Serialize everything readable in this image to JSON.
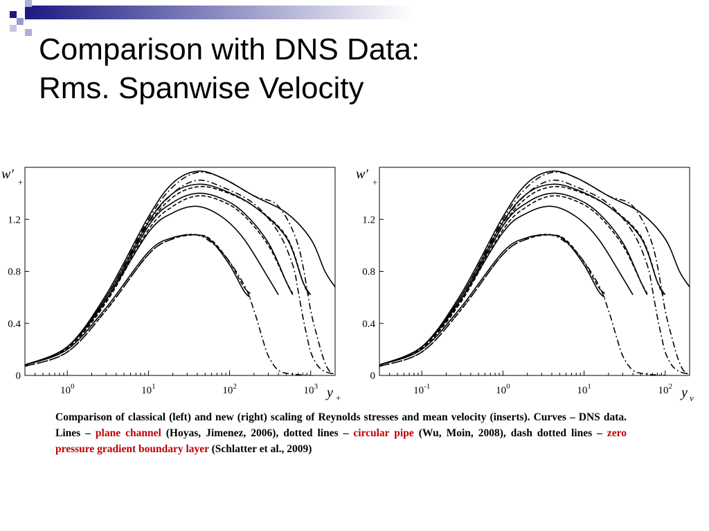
{
  "title": {
    "line1": "Comparison with DNS Data:",
    "line2": "Rms. Spanwise Velocity"
  },
  "decoration": {
    "accent_dark": "#1a1a80",
    "accent_light": "#9999cc"
  },
  "caption": {
    "part1": "Comparison of classical (left) and new (right) scaling of Reynolds stresses and mean velocity (inserts). Curves – DNS data. Lines – ",
    "channel": "plane channel",
    "part2": " (Hoyas, Jimenez, 2006), dotted lines – ",
    "pipe": "circular pipe",
    "part3": " (Wu, Moin, 2008), dash dotted lines – ",
    "bl": "zero pressure gradient boundary layer",
    "part4": " (Schlatter et al., 2009)",
    "highlight_color": "#c00000"
  },
  "chart_data": [
    {
      "type": "line",
      "xscale": "log",
      "ylim": [
        0,
        1.6
      ],
      "xlim": [
        0.3,
        2000
      ],
      "ylabel": "w′",
      "ylabel_sub": "+",
      "xlabel": "y",
      "xlabel_sub": "+",
      "yticks": [
        {
          "value": 0,
          "label": "0"
        },
        {
          "value": 0.4,
          "label": "0.4"
        },
        {
          "value": 0.8,
          "label": "0.8"
        },
        {
          "value": 1.2,
          "label": "1.2"
        }
      ],
      "xticks": [
        {
          "value": 1,
          "base": "10",
          "exp": "0"
        },
        {
          "value": 10,
          "base": "10",
          "exp": "1"
        },
        {
          "value": 100,
          "base": "10",
          "exp": "2"
        },
        {
          "value": 1000,
          "base": "10",
          "exp": "3"
        }
      ],
      "series": [
        {
          "style": "solid",
          "x": [
            0.3,
            1,
            3,
            10,
            20,
            40,
            60,
            100,
            150,
            180
          ],
          "y": [
            0.08,
            0.2,
            0.52,
            0.95,
            1.06,
            1.08,
            1.03,
            0.85,
            0.65,
            0.6
          ]
        },
        {
          "style": "dashed",
          "x": [
            0.3,
            1,
            3,
            10,
            20,
            40,
            60,
            100,
            150,
            180
          ],
          "y": [
            0.07,
            0.18,
            0.5,
            0.93,
            1.05,
            1.08,
            1.04,
            0.87,
            0.68,
            0.63
          ]
        },
        {
          "style": "dashdot",
          "x": [
            0.3,
            1,
            3,
            10,
            20,
            40,
            80,
            150,
            200,
            250,
            300,
            400,
            600,
            1000
          ],
          "y": [
            0.07,
            0.18,
            0.5,
            0.93,
            1.05,
            1.08,
            0.95,
            0.7,
            0.5,
            0.3,
            0.15,
            0.04,
            0.01,
            0.0
          ]
        },
        {
          "style": "solid",
          "x": [
            0.3,
            1,
            3,
            10,
            20,
            40,
            80,
            150,
            300,
            400
          ],
          "y": [
            0.08,
            0.22,
            0.58,
            1.1,
            1.25,
            1.3,
            1.22,
            1.05,
            0.75,
            0.62
          ]
        },
        {
          "style": "dashed",
          "x": [
            0.3,
            1,
            3,
            10,
            20,
            40,
            80,
            150,
            300,
            500,
            600
          ],
          "y": [
            0.08,
            0.21,
            0.56,
            1.12,
            1.3,
            1.38,
            1.34,
            1.23,
            1.0,
            0.72,
            0.63
          ]
        },
        {
          "style": "solid",
          "x": [
            0.3,
            1,
            3,
            10,
            20,
            40,
            80,
            150,
            300,
            500,
            600
          ],
          "y": [
            0.08,
            0.22,
            0.58,
            1.15,
            1.33,
            1.4,
            1.36,
            1.25,
            1.02,
            0.72,
            0.62
          ]
        },
        {
          "style": "dashed",
          "x": [
            0.3,
            1,
            3,
            10,
            20,
            40,
            80,
            200,
            500,
            800,
            950
          ],
          "y": [
            0.08,
            0.21,
            0.57,
            1.15,
            1.37,
            1.45,
            1.42,
            1.3,
            1.07,
            0.72,
            0.62
          ]
        },
        {
          "style": "solid",
          "x": [
            0.3,
            1,
            3,
            10,
            20,
            40,
            80,
            200,
            500,
            800,
            1000
          ],
          "y": [
            0.08,
            0.22,
            0.6,
            1.18,
            1.4,
            1.47,
            1.43,
            1.3,
            1.06,
            0.72,
            0.62
          ]
        },
        {
          "style": "dashdot",
          "x": [
            0.3,
            1,
            3,
            10,
            20,
            40,
            80,
            200,
            400,
            600,
            700,
            800,
            900,
            1000,
            1200,
            1500,
            2000
          ],
          "y": [
            0.08,
            0.22,
            0.6,
            1.17,
            1.4,
            1.5,
            1.45,
            1.32,
            1.1,
            0.85,
            0.65,
            0.45,
            0.3,
            0.18,
            0.08,
            0.03,
            0.01
          ]
        },
        {
          "style": "dashdot",
          "x": [
            0.3,
            1,
            3,
            10,
            20,
            40,
            80,
            200,
            400,
            700,
            1000,
            1200,
            1400,
            1600,
            1800,
            2000
          ],
          "y": [
            0.08,
            0.22,
            0.6,
            1.2,
            1.45,
            1.56,
            1.52,
            1.38,
            1.3,
            1.0,
            0.5,
            0.3,
            0.15,
            0.06,
            0.02,
            0.01
          ]
        },
        {
          "style": "solid",
          "x": [
            0.3,
            1,
            3,
            10,
            20,
            40,
            80,
            200,
            500,
            1000,
            1500,
            2000
          ],
          "y": [
            0.08,
            0.22,
            0.62,
            1.22,
            1.48,
            1.57,
            1.52,
            1.38,
            1.25,
            1.05,
            0.8,
            0.68
          ]
        }
      ]
    },
    {
      "type": "line",
      "xscale": "log",
      "ylim": [
        0,
        1.6
      ],
      "xlim": [
        0.03,
        200
      ],
      "ylabel": "w′",
      "ylabel_sub": "+",
      "xlabel": "y",
      "xlabel_sub": "ν",
      "yticks": [
        {
          "value": 0,
          "label": "0"
        },
        {
          "value": 0.4,
          "label": "0.4"
        },
        {
          "value": 0.8,
          "label": "0.8"
        },
        {
          "value": 1.2,
          "label": "1.2"
        }
      ],
      "xticks": [
        {
          "value": 0.1,
          "base": "10",
          "exp": "-1"
        },
        {
          "value": 1,
          "base": "10",
          "exp": "0"
        },
        {
          "value": 10,
          "base": "10",
          "exp": "1"
        },
        {
          "value": 100,
          "base": "10",
          "exp": "2"
        }
      ],
      "series": [
        {
          "style": "solid",
          "x": [
            0.03,
            0.1,
            0.3,
            1,
            2,
            4,
            6,
            10,
            15,
            18
          ],
          "y": [
            0.08,
            0.2,
            0.52,
            0.95,
            1.06,
            1.08,
            1.03,
            0.85,
            0.65,
            0.6
          ]
        },
        {
          "style": "dashed",
          "x": [
            0.03,
            0.1,
            0.3,
            1,
            2,
            4,
            6,
            10,
            15,
            18
          ],
          "y": [
            0.07,
            0.18,
            0.5,
            0.93,
            1.05,
            1.08,
            1.04,
            0.87,
            0.68,
            0.63
          ]
        },
        {
          "style": "dashdot",
          "x": [
            0.03,
            0.1,
            0.3,
            1,
            2,
            4,
            8,
            15,
            20,
            25,
            30,
            40,
            60,
            100
          ],
          "y": [
            0.07,
            0.18,
            0.5,
            0.93,
            1.05,
            1.08,
            0.95,
            0.7,
            0.5,
            0.3,
            0.15,
            0.04,
            0.01,
            0.0
          ]
        },
        {
          "style": "solid",
          "x": [
            0.03,
            0.1,
            0.3,
            1,
            2,
            4,
            8,
            15,
            30,
            40
          ],
          "y": [
            0.08,
            0.22,
            0.58,
            1.1,
            1.25,
            1.3,
            1.22,
            1.05,
            0.75,
            0.62
          ]
        },
        {
          "style": "dashed",
          "x": [
            0.03,
            0.1,
            0.3,
            1,
            2,
            4,
            8,
            15,
            30,
            50,
            60
          ],
          "y": [
            0.08,
            0.21,
            0.56,
            1.12,
            1.3,
            1.38,
            1.34,
            1.23,
            1.0,
            0.72,
            0.63
          ]
        },
        {
          "style": "solid",
          "x": [
            0.03,
            0.1,
            0.3,
            1,
            2,
            4,
            8,
            15,
            30,
            50,
            60
          ],
          "y": [
            0.08,
            0.22,
            0.58,
            1.15,
            1.33,
            1.4,
            1.36,
            1.25,
            1.02,
            0.72,
            0.62
          ]
        },
        {
          "style": "dashed",
          "x": [
            0.03,
            0.1,
            0.3,
            1,
            2,
            4,
            8,
            20,
            50,
            80,
            95
          ],
          "y": [
            0.08,
            0.21,
            0.57,
            1.15,
            1.37,
            1.45,
            1.42,
            1.3,
            1.07,
            0.72,
            0.62
          ]
        },
        {
          "style": "solid",
          "x": [
            0.03,
            0.1,
            0.3,
            1,
            2,
            4,
            8,
            20,
            50,
            80,
            100
          ],
          "y": [
            0.08,
            0.22,
            0.6,
            1.18,
            1.4,
            1.47,
            1.43,
            1.3,
            1.06,
            0.72,
            0.62
          ]
        },
        {
          "style": "dashdot",
          "x": [
            0.03,
            0.1,
            0.3,
            1,
            2,
            4,
            8,
            20,
            40,
            60,
            70,
            80,
            90,
            100,
            120,
            150,
            200
          ],
          "y": [
            0.08,
            0.22,
            0.6,
            1.17,
            1.4,
            1.5,
            1.45,
            1.32,
            1.1,
            0.85,
            0.65,
            0.45,
            0.3,
            0.18,
            0.08,
            0.03,
            0.01
          ]
        },
        {
          "style": "dashdot",
          "x": [
            0.03,
            0.1,
            0.3,
            1,
            2,
            4,
            8,
            20,
            40,
            70,
            100,
            120,
            140,
            160,
            180,
            200
          ],
          "y": [
            0.08,
            0.22,
            0.6,
            1.2,
            1.45,
            1.56,
            1.52,
            1.38,
            1.3,
            1.0,
            0.5,
            0.3,
            0.15,
            0.06,
            0.02,
            0.01
          ]
        },
        {
          "style": "solid",
          "x": [
            0.03,
            0.1,
            0.3,
            1,
            2,
            4,
            8,
            20,
            50,
            100,
            150,
            200
          ],
          "y": [
            0.08,
            0.22,
            0.62,
            1.22,
            1.48,
            1.57,
            1.52,
            1.38,
            1.25,
            1.05,
            0.8,
            0.68
          ]
        }
      ]
    }
  ]
}
